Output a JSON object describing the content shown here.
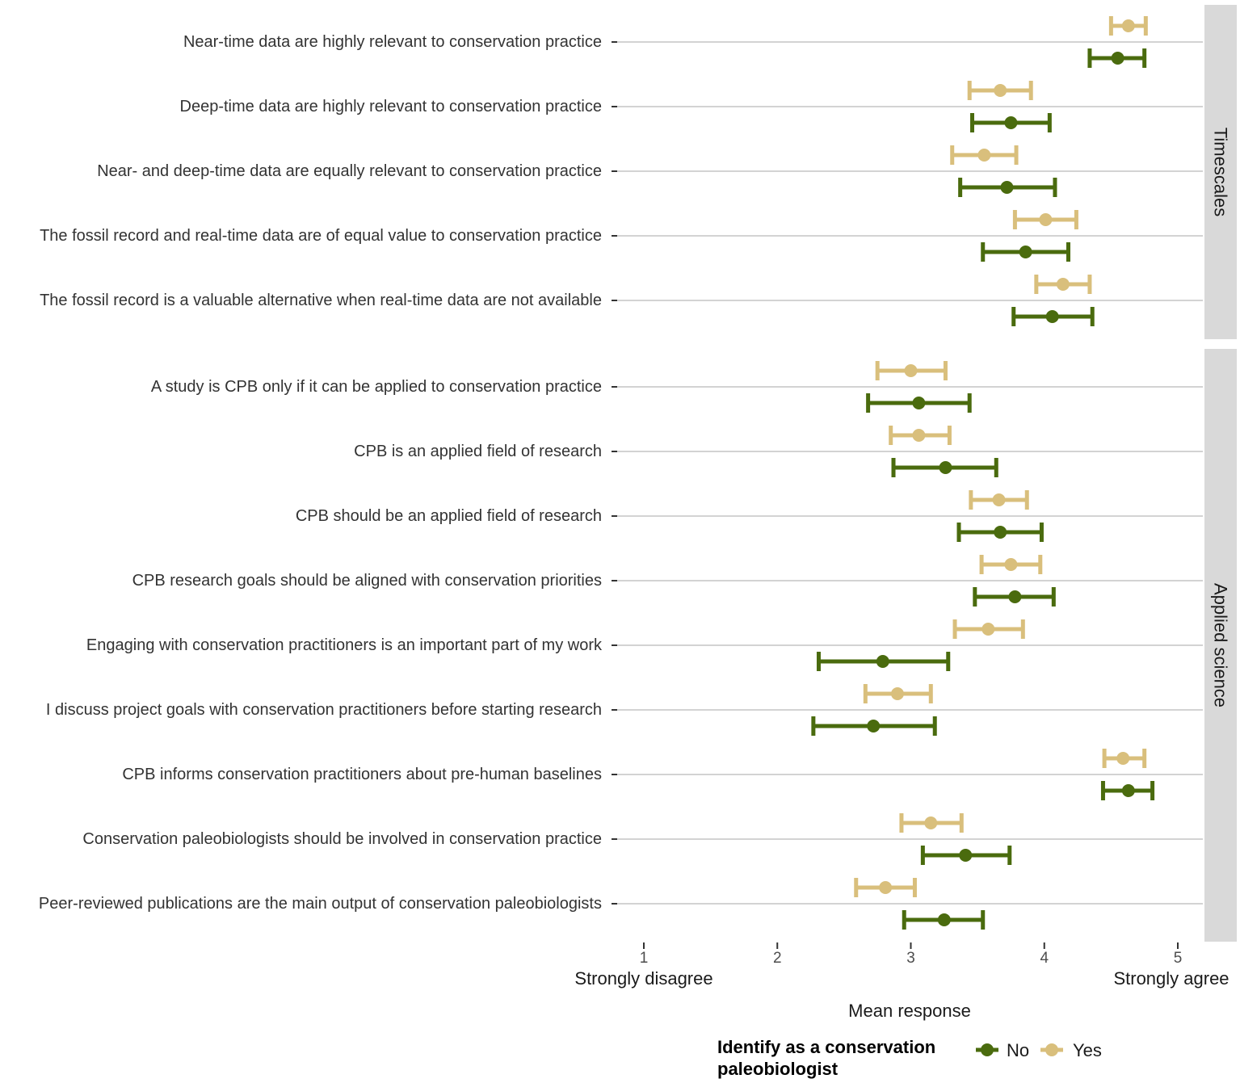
{
  "chart_data": {
    "type": "errorbar-dotplot",
    "xlabel": "Mean response",
    "xlim": [
      0.8,
      5.2
    ],
    "x_ticks": [
      1,
      2,
      3,
      4,
      5
    ],
    "x_tick_labels": [
      "1",
      "2",
      "3",
      "4",
      "5"
    ],
    "x_end_labels": {
      "low": "Strongly disagree",
      "high": "Strongly agree"
    },
    "grid": true,
    "legend": {
      "title_line1": "Identify as a conservation",
      "title_line2": "paleobiologist",
      "position": "bottom",
      "entries": [
        {
          "key": "No",
          "label": "No",
          "color": "#4a6b0e"
        },
        {
          "key": "Yes",
          "label": "Yes",
          "color": "#d9bf7c"
        }
      ]
    },
    "panels": [
      {
        "name": "Timescales",
        "items": [
          {
            "label": "Near-time data are highly relevant to conservation practice",
            "Yes": {
              "mean": 4.63,
              "low": 4.5,
              "high": 4.76
            },
            "No": {
              "mean": 4.55,
              "low": 4.34,
              "high": 4.75
            }
          },
          {
            "label": "Deep-time data are highly relevant to conservation practice",
            "Yes": {
              "mean": 3.67,
              "low": 3.44,
              "high": 3.9
            },
            "No": {
              "mean": 3.75,
              "low": 3.46,
              "high": 4.04
            }
          },
          {
            "label": "Near- and deep-time data are equally relevant to conservation practice",
            "Yes": {
              "mean": 3.55,
              "low": 3.31,
              "high": 3.79
            },
            "No": {
              "mean": 3.72,
              "low": 3.37,
              "high": 4.08
            }
          },
          {
            "label": "The fossil record and real-time data are of equal value to conservation practice",
            "Yes": {
              "mean": 4.01,
              "low": 3.78,
              "high": 4.24
            },
            "No": {
              "mean": 3.86,
              "low": 3.54,
              "high": 4.18
            }
          },
          {
            "label": "The fossil record is a valuable alternative when real-time data are not available",
            "Yes": {
              "mean": 4.14,
              "low": 3.94,
              "high": 4.34
            },
            "No": {
              "mean": 4.06,
              "low": 3.77,
              "high": 4.36
            }
          }
        ]
      },
      {
        "name": "Applied science",
        "items": [
          {
            "label": "A study is CPB only if it can be applied to conservation practice",
            "Yes": {
              "mean": 3.0,
              "low": 2.75,
              "high": 3.26
            },
            "No": {
              "mean": 3.06,
              "low": 2.68,
              "high": 3.44
            }
          },
          {
            "label": "CPB is an applied field of research",
            "Yes": {
              "mean": 3.06,
              "low": 2.85,
              "high": 3.29
            },
            "No": {
              "mean": 3.26,
              "low": 2.87,
              "high": 3.64
            }
          },
          {
            "label": "CPB should be an applied field of research",
            "Yes": {
              "mean": 3.66,
              "low": 3.45,
              "high": 3.87
            },
            "No": {
              "mean": 3.67,
              "low": 3.36,
              "high": 3.98
            }
          },
          {
            "label": "CPB research goals should be aligned with conservation priorities",
            "Yes": {
              "mean": 3.75,
              "low": 3.53,
              "high": 3.97
            },
            "No": {
              "mean": 3.78,
              "low": 3.48,
              "high": 4.07
            }
          },
          {
            "label": "Engaging with conservation practitioners is an important part of my work",
            "Yes": {
              "mean": 3.58,
              "low": 3.33,
              "high": 3.84
            },
            "No": {
              "mean": 2.79,
              "low": 2.31,
              "high": 3.28
            }
          },
          {
            "label": "I discuss project goals with conservation practitioners before starting research",
            "Yes": {
              "mean": 2.9,
              "low": 2.66,
              "high": 3.15
            },
            "No": {
              "mean": 2.72,
              "low": 2.27,
              "high": 3.18
            }
          },
          {
            "label": "CPB informs conservation practitioners about pre-human baselines",
            "Yes": {
              "mean": 4.59,
              "low": 4.45,
              "high": 4.75
            },
            "No": {
              "mean": 4.63,
              "low": 4.44,
              "high": 4.81
            }
          },
          {
            "label": "Conservation paleobiologists should be involved in conservation practice",
            "Yes": {
              "mean": 3.15,
              "low": 2.93,
              "high": 3.38
            },
            "No": {
              "mean": 3.41,
              "low": 3.09,
              "high": 3.74
            }
          },
          {
            "label": "Peer-reviewed publications are the main output of conservation paleobiologists",
            "Yes": {
              "mean": 2.81,
              "low": 2.59,
              "high": 3.03
            },
            "No": {
              "mean": 3.25,
              "low": 2.95,
              "high": 3.54
            }
          }
        ]
      }
    ]
  }
}
